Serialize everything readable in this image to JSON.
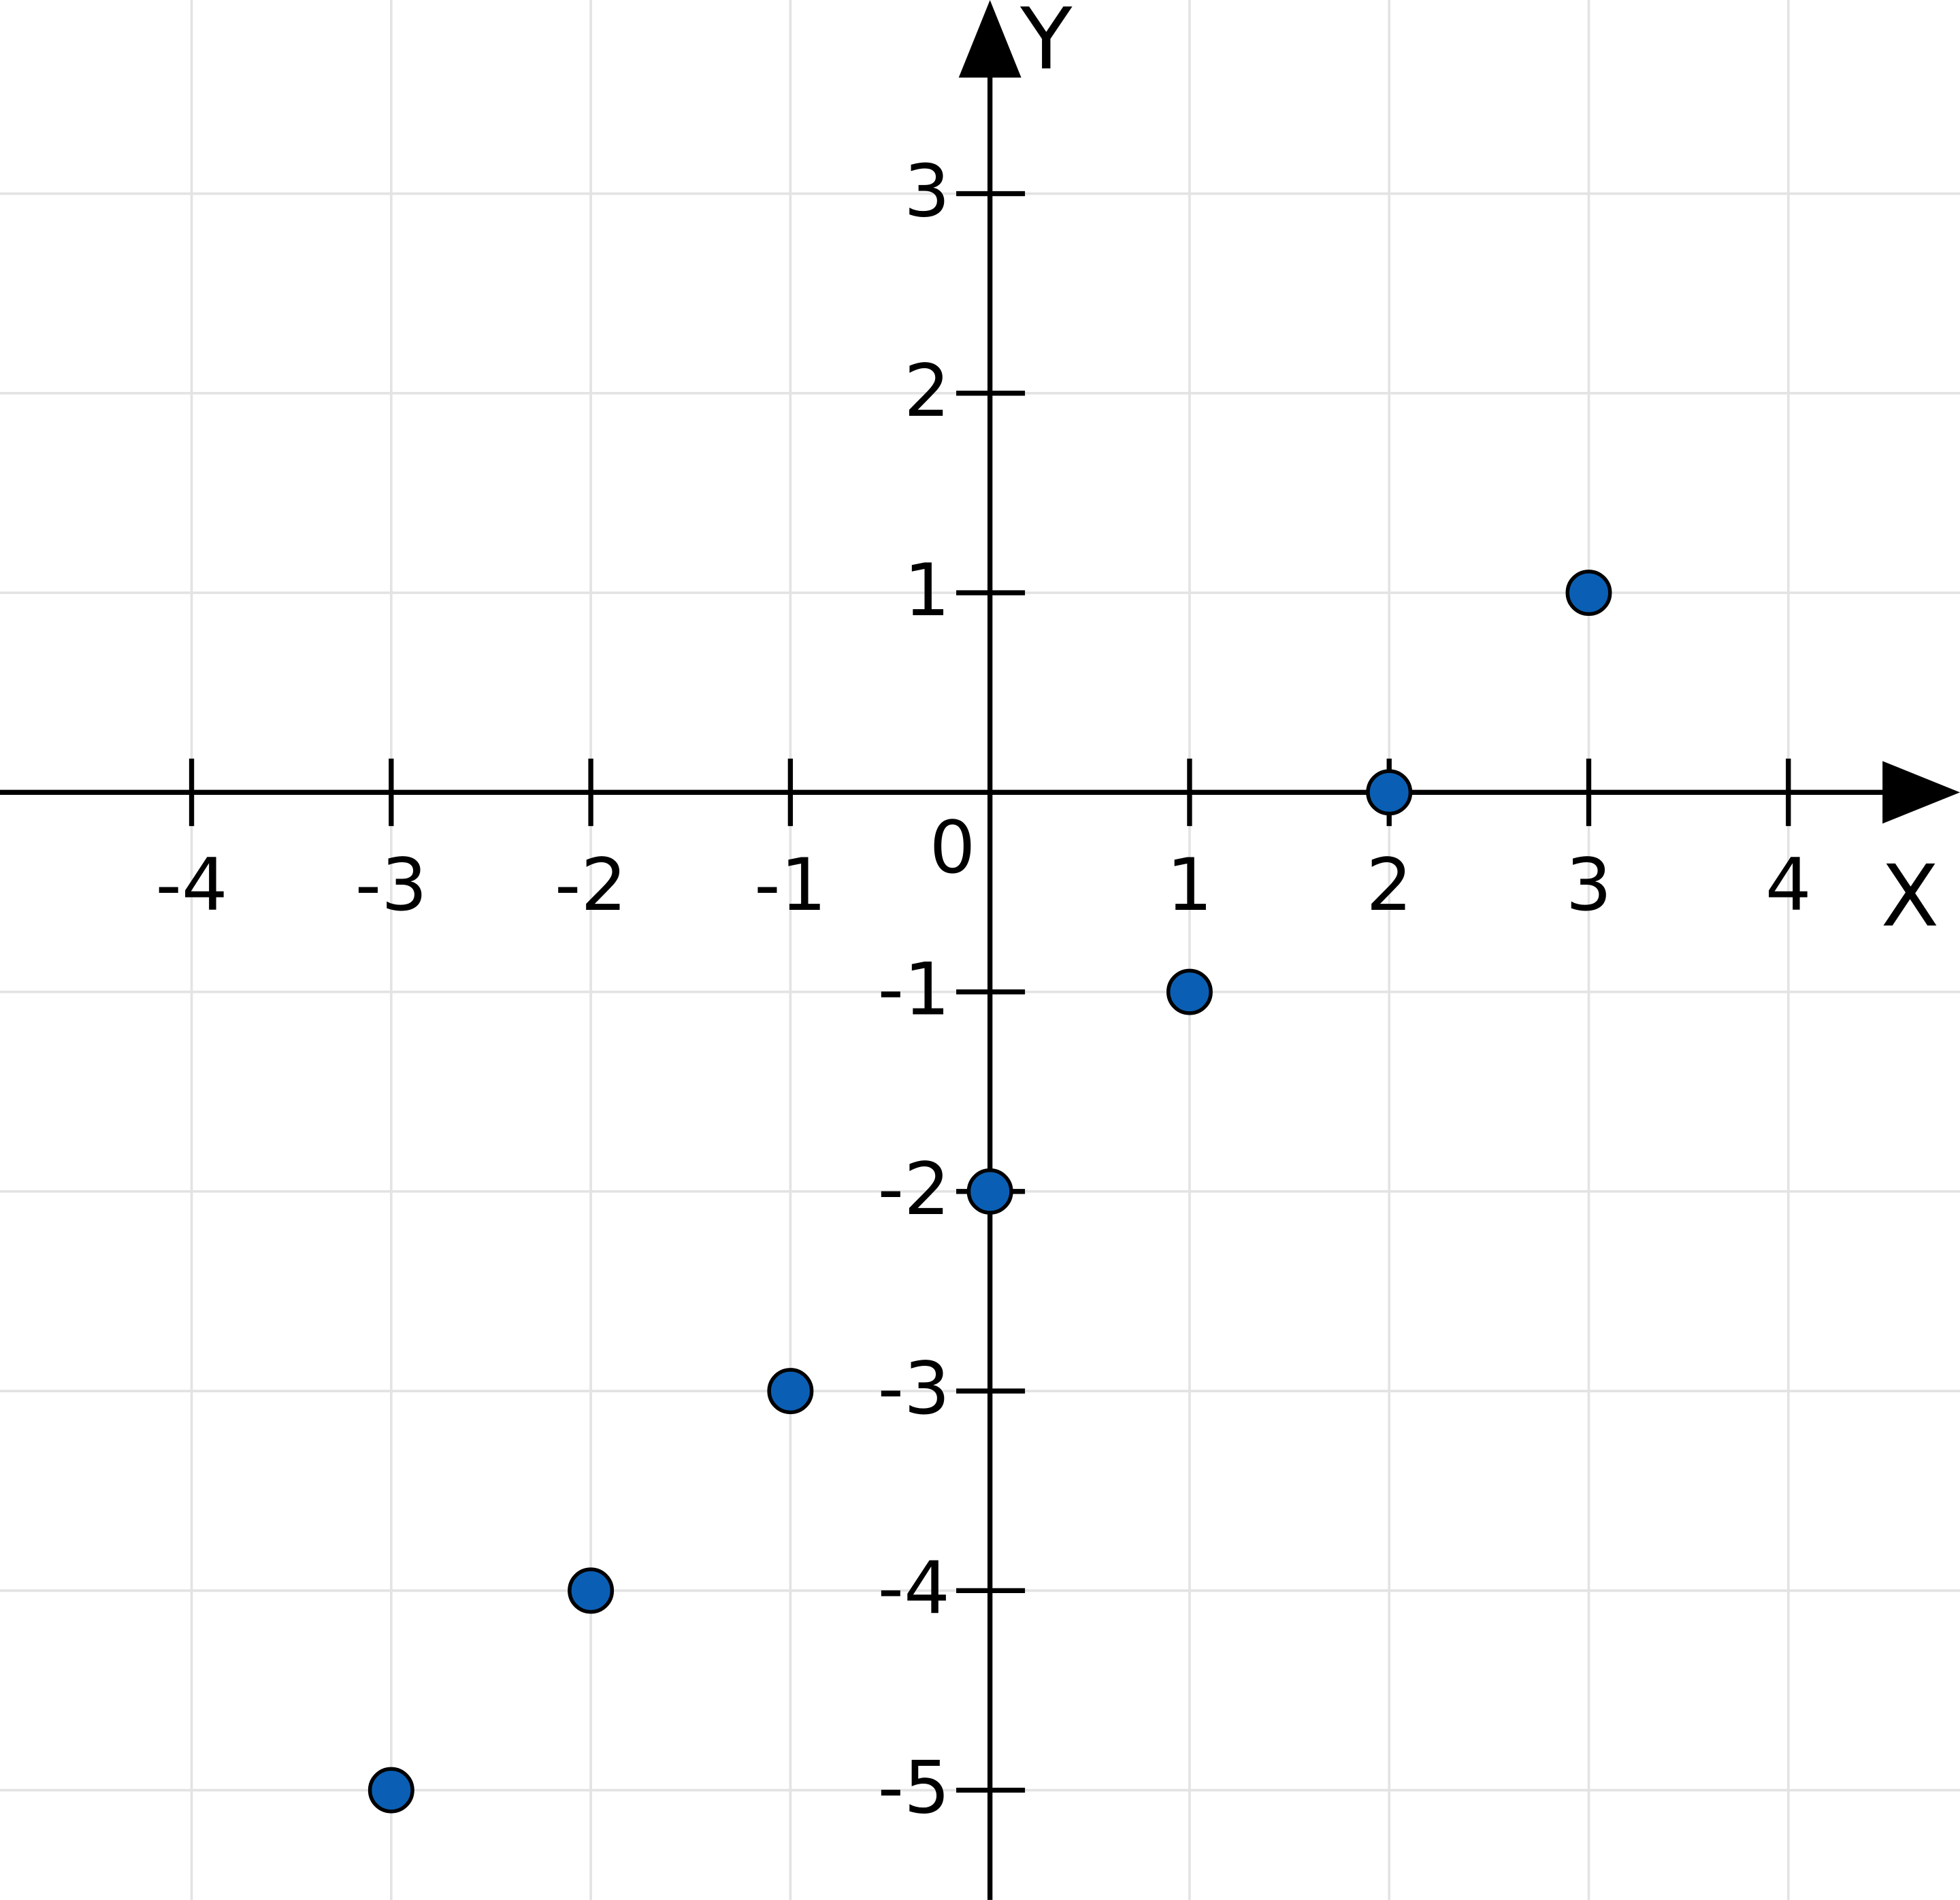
{
  "chart_data": {
    "type": "scatter",
    "x_label": "X",
    "y_label": "Y",
    "origin_label": "0",
    "x": [
      -3,
      -2,
      -1,
      0,
      1,
      2,
      3
    ],
    "series": [
      {
        "color": "#0a5fb4",
        "values": [
          -5,
          -4,
          -3,
          -2,
          -1,
          0,
          1
        ]
      }
    ],
    "xlim": [
      -4.96,
      4.86
    ],
    "ylim": [
      -5.55,
      3.97
    ],
    "xticks": [
      -4,
      -3,
      -2,
      -1,
      1,
      2,
      3,
      4
    ],
    "yticks": [
      -5,
      -4,
      -3,
      -2,
      -1,
      1,
      2,
      3
    ],
    "grid": true
  }
}
